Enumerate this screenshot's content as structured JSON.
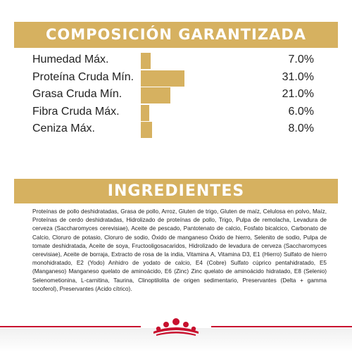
{
  "composition": {
    "title": "COMPOSICIÓN GARANTIZADA",
    "bar_color": "#d6b160",
    "rows": [
      {
        "label": "Humedad Máx.",
        "value": "7.0%",
        "percent": 7.0
      },
      {
        "label": "Proteína Cruda Mín.",
        "value": "31.0%",
        "percent": 31.0
      },
      {
        "label": "Grasa Cruda Mín.",
        "value": "21.0%",
        "percent": 21.0
      },
      {
        "label": "Fibra Cruda Máx.",
        "value": "6.0%",
        "percent": 6.0
      },
      {
        "label": "Ceniza Máx.",
        "value": "8.0%",
        "percent": 8.0
      }
    ]
  },
  "ingredients": {
    "title": "INGREDIENTES",
    "text": "Proteínas de pollo deshidratadas, Grasa de pollo, Arroz, Gluten de trigo, Gluten de maíz, Celulosa en polvo, Maíz, Proteínas de cerdo deshidratadas, Hidrolizado de proteínas de pollo, Trigo, Pulpa de remolacha, Levadura de cerveza (Saccharomyces cerevisiae), Aceite de pescado, Pantotenato de calcio, Fosfato bicalcico, Carbonato de Calcio, Cloruro de potasio, Cloruro de sodio, Óxido de manganeso Óxido de hierro, Selenito de sodio, Pulpa de tomate deshidratada, Aceite de soya, Fructooligosacaridos, Hidrolizado de levadura de cerveza (Saccharomyces cerevisiae), Aceite de borraja, Extracto de rosa de la india, Vitamina A, Vitamina D3, E1 (Hierro) Sulfato de hierro monohidratado, E2 (Yodo) Anhidro de yodato de calcio, E4 (Cobre) Sulfato cúprico pentahidratado, E5 (Manganeso) Manganeso quelato de aminoácido, E6 (Zinc) Zinc quelato de aminoácido hidratado, E8 (Selenio) Selenometionina, L-carnitina, Taurina, Clinoptilolita de origen sedimentario, Preservantes (Delta + gamma tocoferol), Preservantes (Acido cítrico)."
  },
  "footer": {
    "accent_color": "#c8102e",
    "logo_icon": "royal-canin-crown-icon"
  }
}
